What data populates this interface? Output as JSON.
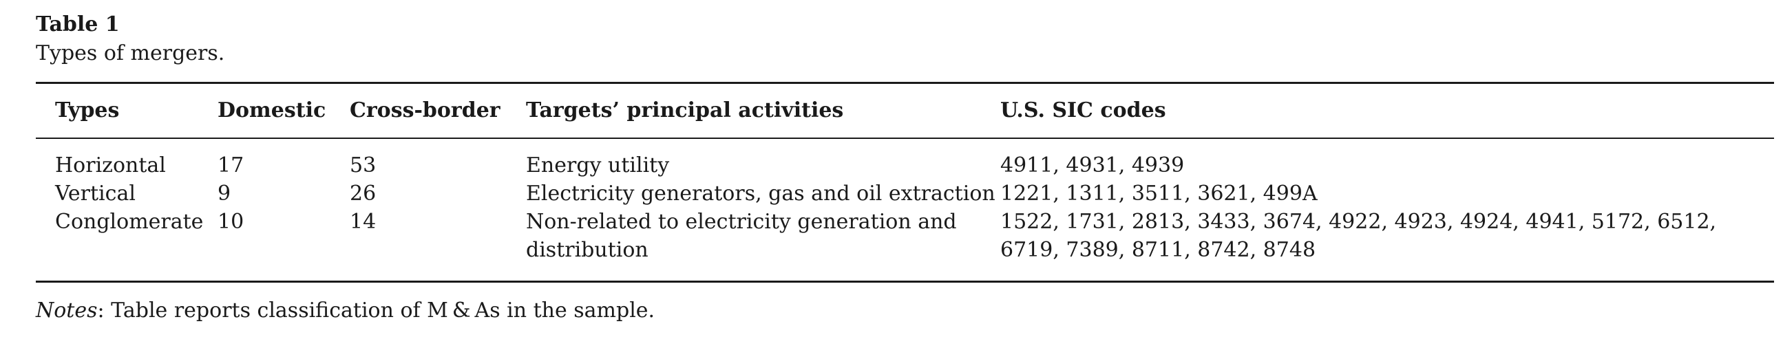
{
  "caption": {
    "title": "Table 1",
    "subtitle": "Types of mergers."
  },
  "table": {
    "headers": [
      "Types",
      "Domestic",
      "Cross-border",
      "Targets’ principal activities",
      "U.S. SIC codes"
    ],
    "rows": [
      [
        "Horizontal",
        "17",
        "53",
        "Energy utility",
        "4911, 4931, 4939"
      ],
      [
        "Vertical",
        "9",
        "26",
        "Electricity generators, gas and oil extraction",
        "1221, 1311, 3511, 3621, 499A"
      ],
      [
        "Conglomerate",
        "10",
        "14",
        "Non-related to electricity generation and distribution",
        "1522, 1731, 2813, 3433, 3674, 4922, 4923, 4924, 4941, 5172, 6512, 6719, 7389, 8711, 8742, 8748"
      ]
    ]
  },
  "notes": {
    "label": "Notes",
    "text": ": Table reports classification of M & As in the sample."
  }
}
